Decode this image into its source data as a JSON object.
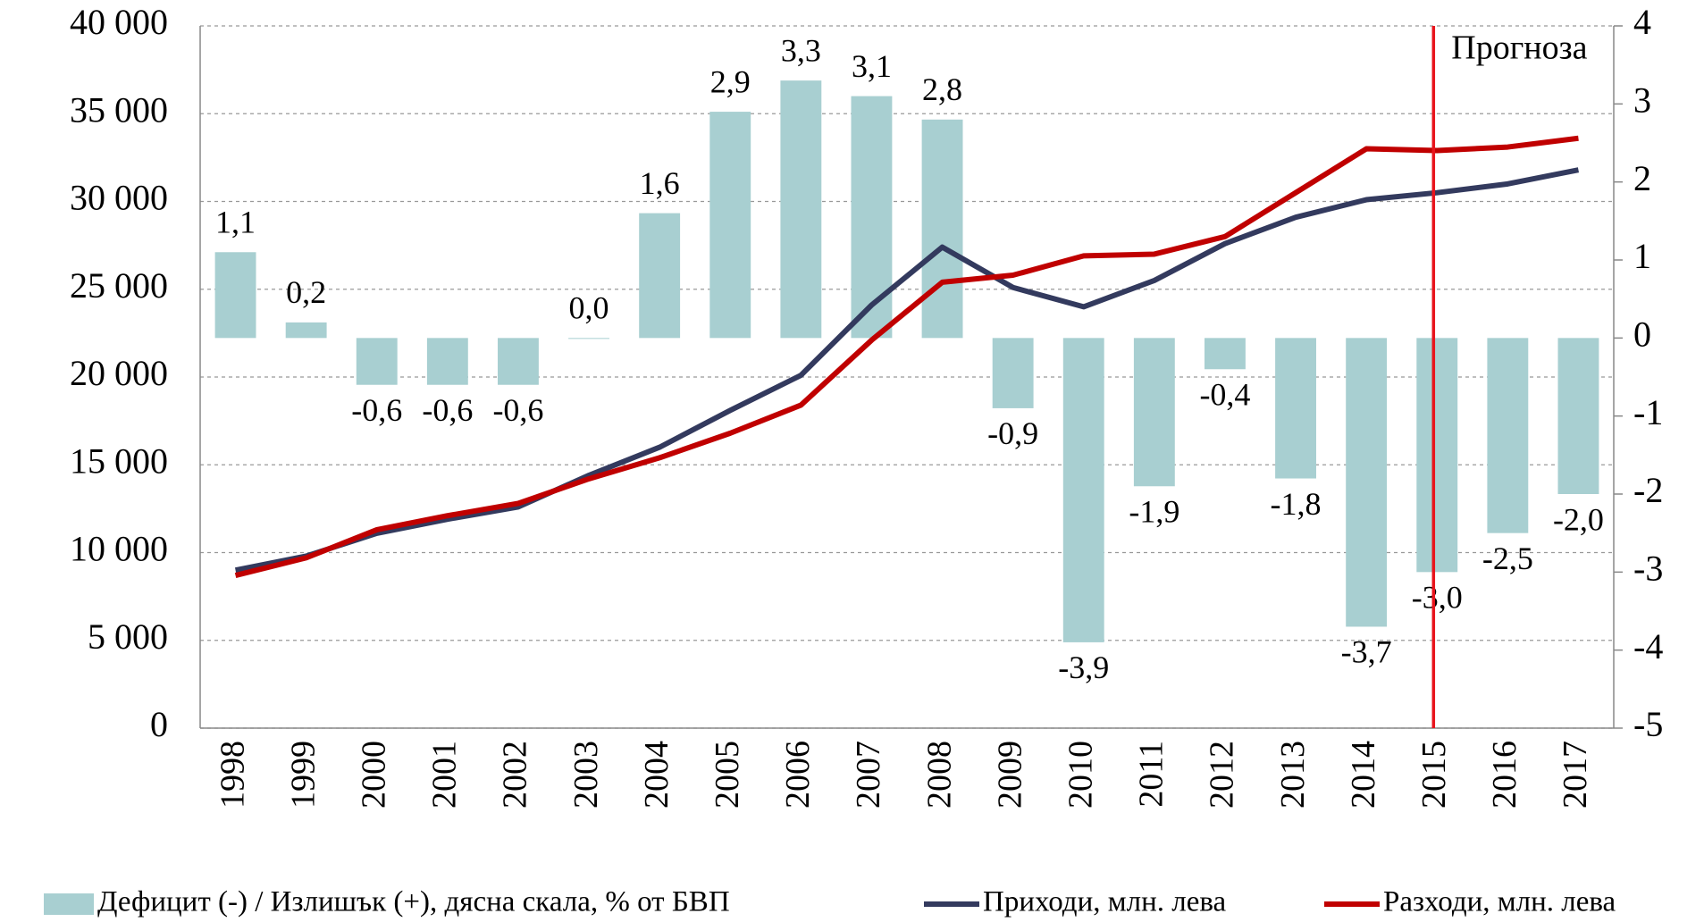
{
  "chart_data": {
    "type": "bar",
    "annotation": "Прогноза",
    "annotation_color": "#e8141c",
    "categories": [
      "1998",
      "1999",
      "2000",
      "2001",
      "2002",
      "2003",
      "2004",
      "2005",
      "2006",
      "2007",
      "2008",
      "2009",
      "2010",
      "2011",
      "2012",
      "2013",
      "2014",
      "2015",
      "2016",
      "2017"
    ],
    "series": [
      {
        "name": "Дефицит (-) / Излишък (+), дясна скала, % от БВП",
        "type": "bar",
        "axis": "y2",
        "color": "#a8cfd1",
        "values": [
          1.1,
          0.2,
          -0.6,
          -0.6,
          -0.6,
          0.0,
          1.6,
          2.9,
          3.3,
          3.1,
          2.8,
          -0.9,
          -3.9,
          -1.9,
          -0.4,
          -1.8,
          -3.7,
          -3.0,
          -2.5,
          -2.0
        ],
        "value_labels": [
          "1,1",
          "0,2",
          "-0,6",
          "-0,6",
          "-0,6",
          "0,0",
          "1,6",
          "2,9",
          "3,3",
          "3,1",
          "2,8",
          "-0,9",
          "-3,9",
          "-1,9",
          "-0,4",
          "-1,8",
          "-3,7",
          "-3,0",
          "-2,5",
          "-2,0"
        ]
      },
      {
        "name": "Приходи, млн. лева",
        "type": "line",
        "axis": "y",
        "color": "#333a5e",
        "values": [
          9000,
          9800,
          11100,
          11900,
          12600,
          14400,
          16000,
          18100,
          20100,
          24100,
          27400,
          25100,
          24000,
          25500,
          27600,
          29100,
          30100,
          30500,
          31000,
          31800
        ]
      },
      {
        "name": "Разходи, млн. лева",
        "type": "line",
        "axis": "y",
        "color": "#c00000",
        "values": [
          8700,
          9700,
          11300,
          12100,
          12800,
          14200,
          15400,
          16800,
          18400,
          22100,
          25400,
          25800,
          26900,
          27000,
          28000,
          30500,
          33000,
          32900,
          33100,
          33600
        ]
      }
    ],
    "ylim": [
      0,
      40000
    ],
    "yticks": [
      0,
      {
        "value": 5000,
        "label": "5 000"
      },
      {
        "value": 10000,
        "label": "10 000"
      },
      {
        "value": 15000,
        "label": "15 000"
      },
      {
        "value": 20000,
        "label": "20 000"
      },
      {
        "value": 25000,
        "label": "25 000"
      },
      {
        "value": 30000,
        "label": "30 000"
      },
      {
        "value": 35000,
        "label": "35 000"
      },
      {
        "value": 40000,
        "label": "40 000"
      }
    ],
    "y2lim": [
      -5,
      4
    ],
    "y2ticks": [
      -5,
      -4,
      -3,
      -2,
      -1,
      0,
      1,
      2,
      3,
      4
    ],
    "grid": true
  }
}
